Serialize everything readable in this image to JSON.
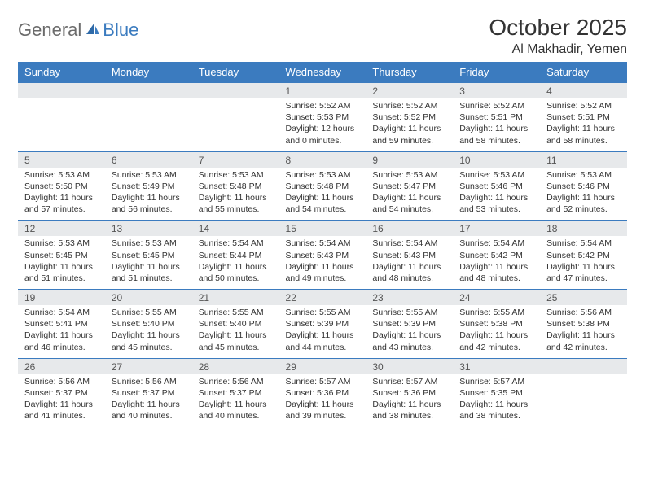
{
  "brand": {
    "part1": "General",
    "part2": "Blue"
  },
  "title": "October 2025",
  "location": "Al Makhadir, Yemen",
  "colors": {
    "header_bg": "#3b7bbf",
    "header_text": "#ffffff",
    "daynum_bg": "#e7e9eb",
    "daynum_border": "#3b7bbf",
    "body_text": "#333333",
    "logo_grey": "#6b6b6b",
    "logo_blue": "#3b7bbf"
  },
  "day_headers": [
    "Sunday",
    "Monday",
    "Tuesday",
    "Wednesday",
    "Thursday",
    "Friday",
    "Saturday"
  ],
  "weeks": [
    {
      "nums": [
        "",
        "",
        "",
        "1",
        "2",
        "3",
        "4"
      ],
      "cells": [
        {
          "sunrise": "",
          "sunset": "",
          "daylight": ""
        },
        {
          "sunrise": "",
          "sunset": "",
          "daylight": ""
        },
        {
          "sunrise": "",
          "sunset": "",
          "daylight": ""
        },
        {
          "sunrise": "Sunrise: 5:52 AM",
          "sunset": "Sunset: 5:53 PM",
          "daylight": "Daylight: 12 hours and 0 minutes."
        },
        {
          "sunrise": "Sunrise: 5:52 AM",
          "sunset": "Sunset: 5:52 PM",
          "daylight": "Daylight: 11 hours and 59 minutes."
        },
        {
          "sunrise": "Sunrise: 5:52 AM",
          "sunset": "Sunset: 5:51 PM",
          "daylight": "Daylight: 11 hours and 58 minutes."
        },
        {
          "sunrise": "Sunrise: 5:52 AM",
          "sunset": "Sunset: 5:51 PM",
          "daylight": "Daylight: 11 hours and 58 minutes."
        }
      ]
    },
    {
      "nums": [
        "5",
        "6",
        "7",
        "8",
        "9",
        "10",
        "11"
      ],
      "cells": [
        {
          "sunrise": "Sunrise: 5:53 AM",
          "sunset": "Sunset: 5:50 PM",
          "daylight": "Daylight: 11 hours and 57 minutes."
        },
        {
          "sunrise": "Sunrise: 5:53 AM",
          "sunset": "Sunset: 5:49 PM",
          "daylight": "Daylight: 11 hours and 56 minutes."
        },
        {
          "sunrise": "Sunrise: 5:53 AM",
          "sunset": "Sunset: 5:48 PM",
          "daylight": "Daylight: 11 hours and 55 minutes."
        },
        {
          "sunrise": "Sunrise: 5:53 AM",
          "sunset": "Sunset: 5:48 PM",
          "daylight": "Daylight: 11 hours and 54 minutes."
        },
        {
          "sunrise": "Sunrise: 5:53 AM",
          "sunset": "Sunset: 5:47 PM",
          "daylight": "Daylight: 11 hours and 54 minutes."
        },
        {
          "sunrise": "Sunrise: 5:53 AM",
          "sunset": "Sunset: 5:46 PM",
          "daylight": "Daylight: 11 hours and 53 minutes."
        },
        {
          "sunrise": "Sunrise: 5:53 AM",
          "sunset": "Sunset: 5:46 PM",
          "daylight": "Daylight: 11 hours and 52 minutes."
        }
      ]
    },
    {
      "nums": [
        "12",
        "13",
        "14",
        "15",
        "16",
        "17",
        "18"
      ],
      "cells": [
        {
          "sunrise": "Sunrise: 5:53 AM",
          "sunset": "Sunset: 5:45 PM",
          "daylight": "Daylight: 11 hours and 51 minutes."
        },
        {
          "sunrise": "Sunrise: 5:53 AM",
          "sunset": "Sunset: 5:45 PM",
          "daylight": "Daylight: 11 hours and 51 minutes."
        },
        {
          "sunrise": "Sunrise: 5:54 AM",
          "sunset": "Sunset: 5:44 PM",
          "daylight": "Daylight: 11 hours and 50 minutes."
        },
        {
          "sunrise": "Sunrise: 5:54 AM",
          "sunset": "Sunset: 5:43 PM",
          "daylight": "Daylight: 11 hours and 49 minutes."
        },
        {
          "sunrise": "Sunrise: 5:54 AM",
          "sunset": "Sunset: 5:43 PM",
          "daylight": "Daylight: 11 hours and 48 minutes."
        },
        {
          "sunrise": "Sunrise: 5:54 AM",
          "sunset": "Sunset: 5:42 PM",
          "daylight": "Daylight: 11 hours and 48 minutes."
        },
        {
          "sunrise": "Sunrise: 5:54 AM",
          "sunset": "Sunset: 5:42 PM",
          "daylight": "Daylight: 11 hours and 47 minutes."
        }
      ]
    },
    {
      "nums": [
        "19",
        "20",
        "21",
        "22",
        "23",
        "24",
        "25"
      ],
      "cells": [
        {
          "sunrise": "Sunrise: 5:54 AM",
          "sunset": "Sunset: 5:41 PM",
          "daylight": "Daylight: 11 hours and 46 minutes."
        },
        {
          "sunrise": "Sunrise: 5:55 AM",
          "sunset": "Sunset: 5:40 PM",
          "daylight": "Daylight: 11 hours and 45 minutes."
        },
        {
          "sunrise": "Sunrise: 5:55 AM",
          "sunset": "Sunset: 5:40 PM",
          "daylight": "Daylight: 11 hours and 45 minutes."
        },
        {
          "sunrise": "Sunrise: 5:55 AM",
          "sunset": "Sunset: 5:39 PM",
          "daylight": "Daylight: 11 hours and 44 minutes."
        },
        {
          "sunrise": "Sunrise: 5:55 AM",
          "sunset": "Sunset: 5:39 PM",
          "daylight": "Daylight: 11 hours and 43 minutes."
        },
        {
          "sunrise": "Sunrise: 5:55 AM",
          "sunset": "Sunset: 5:38 PM",
          "daylight": "Daylight: 11 hours and 42 minutes."
        },
        {
          "sunrise": "Sunrise: 5:56 AM",
          "sunset": "Sunset: 5:38 PM",
          "daylight": "Daylight: 11 hours and 42 minutes."
        }
      ]
    },
    {
      "nums": [
        "26",
        "27",
        "28",
        "29",
        "30",
        "31",
        ""
      ],
      "cells": [
        {
          "sunrise": "Sunrise: 5:56 AM",
          "sunset": "Sunset: 5:37 PM",
          "daylight": "Daylight: 11 hours and 41 minutes."
        },
        {
          "sunrise": "Sunrise: 5:56 AM",
          "sunset": "Sunset: 5:37 PM",
          "daylight": "Daylight: 11 hours and 40 minutes."
        },
        {
          "sunrise": "Sunrise: 5:56 AM",
          "sunset": "Sunset: 5:37 PM",
          "daylight": "Daylight: 11 hours and 40 minutes."
        },
        {
          "sunrise": "Sunrise: 5:57 AM",
          "sunset": "Sunset: 5:36 PM",
          "daylight": "Daylight: 11 hours and 39 minutes."
        },
        {
          "sunrise": "Sunrise: 5:57 AM",
          "sunset": "Sunset: 5:36 PM",
          "daylight": "Daylight: 11 hours and 38 minutes."
        },
        {
          "sunrise": "Sunrise: 5:57 AM",
          "sunset": "Sunset: 5:35 PM",
          "daylight": "Daylight: 11 hours and 38 minutes."
        },
        {
          "sunrise": "",
          "sunset": "",
          "daylight": ""
        }
      ]
    }
  ]
}
